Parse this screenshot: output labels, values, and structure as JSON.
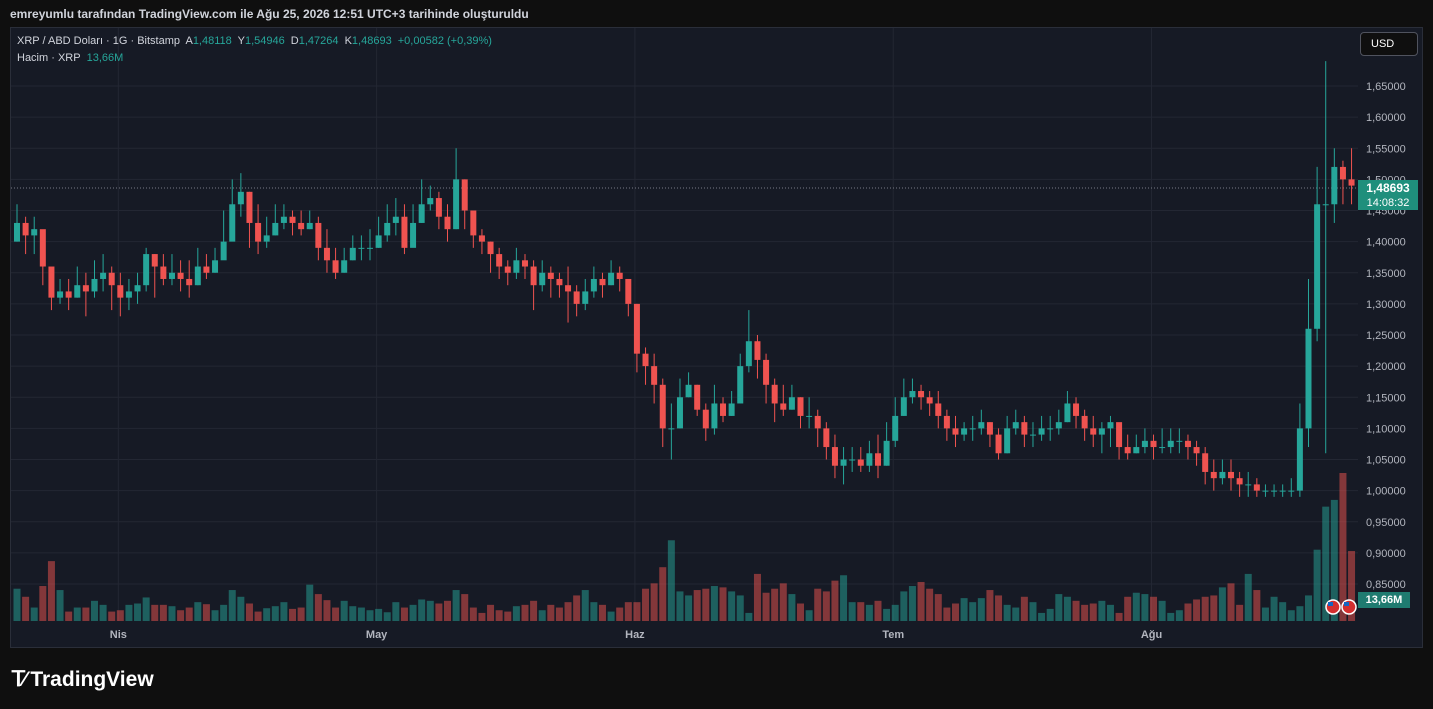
{
  "header": {
    "caption": "emreyumlu tarafından TradingView.com ile Ağu 25, 2026 12:51 UTC+3 tarihinde oluşturuldu"
  },
  "legend": {
    "symbol": "XRP / ABD Doları · 1G · Bitstamp",
    "open_label": "A",
    "open": "1,48118",
    "high_label": "Y",
    "high": "1,54946",
    "low_label": "D",
    "low": "1,47264",
    "close_label": "K",
    "close": "1,48693",
    "change": "+0,00582 (+0,39%)",
    "volume_label": "Hacim · XRP",
    "volume": "13,66M"
  },
  "currency_button": "USD",
  "last_price": {
    "price": "1,48693",
    "countdown": "14:08:32"
  },
  "volume_badge": "13,66M",
  "brand": {
    "name": "TradingView"
  },
  "colors": {
    "up": "#26a69a",
    "down": "#ef5350",
    "background": "#161a25",
    "grid": "#232733"
  },
  "chart_data": {
    "type": "candlestick",
    "symbol": "XRP/USD",
    "interval": "1D",
    "y_axis": {
      "ticks": [
        "0,85000",
        "0,90000",
        "0,95000",
        "1,00000",
        "1,05000",
        "1,10000",
        "1,15000",
        "1,20000",
        "1,25000",
        "1,30000",
        "1,35000",
        "1,40000",
        "1,45000",
        "1,50000",
        "1,55000",
        "1,60000",
        "1,65000"
      ],
      "range": [
        0.79,
        1.7
      ]
    },
    "x_axis": {
      "labels": [
        "Nis",
        "May",
        "Haz",
        "Tem",
        "Ağu"
      ],
      "label_index": [
        12,
        42,
        72,
        102,
        132
      ]
    },
    "closes": [
      1.43,
      1.41,
      1.42,
      1.36,
      1.31,
      1.32,
      1.31,
      1.33,
      1.32,
      1.34,
      1.35,
      1.33,
      1.31,
      1.32,
      1.33,
      1.38,
      1.36,
      1.34,
      1.35,
      1.34,
      1.33,
      1.36,
      1.35,
      1.37,
      1.4,
      1.46,
      1.48,
      1.43,
      1.4,
      1.41,
      1.43,
      1.44,
      1.43,
      1.42,
      1.43,
      1.39,
      1.37,
      1.35,
      1.37,
      1.39,
      1.39,
      1.39,
      1.41,
      1.43,
      1.44,
      1.39,
      1.43,
      1.46,
      1.47,
      1.44,
      1.42,
      1.5,
      1.45,
      1.41,
      1.4,
      1.38,
      1.36,
      1.35,
      1.37,
      1.36,
      1.33,
      1.35,
      1.34,
      1.33,
      1.32,
      1.3,
      1.32,
      1.34,
      1.33,
      1.35,
      1.34,
      1.3,
      1.22,
      1.2,
      1.17,
      1.1,
      1.1,
      1.15,
      1.17,
      1.13,
      1.1,
      1.14,
      1.12,
      1.14,
      1.2,
      1.24,
      1.21,
      1.17,
      1.14,
      1.13,
      1.15,
      1.12,
      1.12,
      1.1,
      1.07,
      1.04,
      1.05,
      1.05,
      1.04,
      1.06,
      1.04,
      1.08,
      1.12,
      1.15,
      1.16,
      1.15,
      1.14,
      1.12,
      1.1,
      1.09,
      1.1,
      1.1,
      1.11,
      1.09,
      1.06,
      1.1,
      1.11,
      1.09,
      1.09,
      1.1,
      1.1,
      1.11,
      1.14,
      1.12,
      1.1,
      1.09,
      1.1,
      1.11,
      1.07,
      1.06,
      1.07,
      1.08,
      1.07,
      1.07,
      1.08,
      1.08,
      1.07,
      1.06,
      1.03,
      1.02,
      1.03,
      1.02,
      1.01,
      1.01,
      1.0,
      1.0,
      1.0,
      1.0,
      1.0,
      1.1,
      1.26,
      1.46,
      1.46,
      1.52,
      1.5,
      1.49
    ],
    "highs": [
      1.46,
      1.44,
      1.44,
      1.41,
      1.35,
      1.34,
      1.34,
      1.36,
      1.35,
      1.37,
      1.38,
      1.36,
      1.35,
      1.34,
      1.35,
      1.39,
      1.38,
      1.38,
      1.38,
      1.37,
      1.37,
      1.39,
      1.38,
      1.39,
      1.45,
      1.5,
      1.51,
      1.48,
      1.46,
      1.44,
      1.46,
      1.46,
      1.45,
      1.45,
      1.45,
      1.44,
      1.42,
      1.39,
      1.39,
      1.41,
      1.41,
      1.42,
      1.44,
      1.46,
      1.47,
      1.46,
      1.46,
      1.5,
      1.49,
      1.48,
      1.46,
      1.55,
      1.5,
      1.43,
      1.42,
      1.4,
      1.39,
      1.37,
      1.39,
      1.38,
      1.37,
      1.37,
      1.36,
      1.35,
      1.36,
      1.33,
      1.34,
      1.36,
      1.35,
      1.37,
      1.36,
      1.33,
      1.3,
      1.23,
      1.22,
      1.18,
      1.14,
      1.18,
      1.19,
      1.17,
      1.14,
      1.17,
      1.15,
      1.16,
      1.22,
      1.29,
      1.25,
      1.22,
      1.18,
      1.17,
      1.17,
      1.15,
      1.15,
      1.13,
      1.11,
      1.09,
      1.07,
      1.07,
      1.07,
      1.08,
      1.09,
      1.11,
      1.15,
      1.18,
      1.18,
      1.17,
      1.16,
      1.16,
      1.13,
      1.12,
      1.11,
      1.12,
      1.13,
      1.11,
      1.1,
      1.12,
      1.13,
      1.12,
      1.11,
      1.12,
      1.12,
      1.13,
      1.16,
      1.15,
      1.13,
      1.12,
      1.11,
      1.12,
      1.1,
      1.09,
      1.09,
      1.1,
      1.09,
      1.1,
      1.1,
      1.1,
      1.09,
      1.08,
      1.07,
      1.05,
      1.05,
      1.05,
      1.03,
      1.03,
      1.02,
      1.01,
      1.01,
      1.01,
      1.02,
      1.14,
      1.34,
      1.52,
      1.69,
      1.55,
      1.53,
      1.55
    ],
    "lows": [
      1.4,
      1.38,
      1.38,
      1.33,
      1.29,
      1.3,
      1.29,
      1.31,
      1.28,
      1.31,
      1.32,
      1.29,
      1.28,
      1.29,
      1.3,
      1.32,
      1.31,
      1.33,
      1.33,
      1.32,
      1.31,
      1.33,
      1.34,
      1.35,
      1.38,
      1.43,
      1.44,
      1.39,
      1.38,
      1.39,
      1.41,
      1.42,
      1.41,
      1.41,
      1.42,
      1.37,
      1.35,
      1.34,
      1.35,
      1.37,
      1.37,
      1.37,
      1.39,
      1.4,
      1.41,
      1.38,
      1.41,
      1.43,
      1.45,
      1.42,
      1.4,
      1.42,
      1.42,
      1.39,
      1.38,
      1.35,
      1.34,
      1.33,
      1.34,
      1.34,
      1.29,
      1.32,
      1.31,
      1.31,
      1.27,
      1.28,
      1.29,
      1.31,
      1.31,
      1.33,
      1.32,
      1.28,
      1.19,
      1.17,
      1.14,
      1.07,
      1.05,
      1.1,
      1.15,
      1.12,
      1.08,
      1.09,
      1.11,
      1.12,
      1.14,
      1.19,
      1.18,
      1.14,
      1.11,
      1.12,
      1.13,
      1.1,
      1.1,
      1.07,
      1.05,
      1.02,
      1.01,
      1.03,
      1.03,
      1.03,
      1.02,
      1.04,
      1.07,
      1.12,
      1.14,
      1.13,
      1.12,
      1.1,
      1.08,
      1.07,
      1.08,
      1.08,
      1.09,
      1.07,
      1.05,
      1.06,
      1.09,
      1.07,
      1.07,
      1.08,
      1.08,
      1.09,
      1.11,
      1.1,
      1.08,
      1.07,
      1.06,
      1.07,
      1.05,
      1.05,
      1.06,
      1.06,
      1.05,
      1.06,
      1.06,
      1.06,
      1.05,
      1.04,
      1.01,
      1.0,
      1.01,
      1.0,
      0.99,
      0.99,
      0.99,
      0.99,
      0.99,
      0.99,
      0.99,
      0.99,
      1.07,
      1.24,
      1.06,
      1.43,
      1.46,
      1.46
    ],
    "volumes": [
      0.48,
      0.36,
      0.2,
      0.52,
      0.89,
      0.46,
      0.14,
      0.2,
      0.2,
      0.3,
      0.24,
      0.14,
      0.16,
      0.24,
      0.26,
      0.35,
      0.24,
      0.24,
      0.22,
      0.16,
      0.2,
      0.28,
      0.25,
      0.16,
      0.24,
      0.46,
      0.36,
      0.26,
      0.14,
      0.19,
      0.22,
      0.28,
      0.18,
      0.2,
      0.54,
      0.4,
      0.31,
      0.2,
      0.3,
      0.22,
      0.2,
      0.16,
      0.18,
      0.13,
      0.28,
      0.2,
      0.24,
      0.32,
      0.3,
      0.26,
      0.3,
      0.46,
      0.4,
      0.2,
      0.12,
      0.24,
      0.16,
      0.14,
      0.22,
      0.24,
      0.3,
      0.16,
      0.24,
      0.2,
      0.28,
      0.38,
      0.46,
      0.28,
      0.24,
      0.14,
      0.2,
      0.28,
      0.28,
      0.48,
      0.56,
      0.8,
      1.2,
      0.44,
      0.38,
      0.46,
      0.48,
      0.52,
      0.5,
      0.44,
      0.38,
      0.12,
      0.7,
      0.42,
      0.48,
      0.56,
      0.4,
      0.26,
      0.16,
      0.48,
      0.44,
      0.6,
      0.68,
      0.28,
      0.28,
      0.24,
      0.3,
      0.18,
      0.24,
      0.44,
      0.52,
      0.58,
      0.48,
      0.4,
      0.2,
      0.26,
      0.34,
      0.28,
      0.34,
      0.46,
      0.38,
      0.24,
      0.2,
      0.36,
      0.28,
      0.12,
      0.18,
      0.4,
      0.36,
      0.3,
      0.24,
      0.26,
      0.3,
      0.24,
      0.12,
      0.36,
      0.42,
      0.4,
      0.36,
      0.3,
      0.12,
      0.16,
      0.26,
      0.32,
      0.36,
      0.38,
      0.5,
      0.56,
      0.24,
      0.7,
      0.46,
      0.2,
      0.36,
      0.28,
      0.16,
      0.22,
      0.38,
      1.06,
      1.7,
      1.8,
      2.2,
      1.04,
      1.58,
      0.36
    ]
  }
}
